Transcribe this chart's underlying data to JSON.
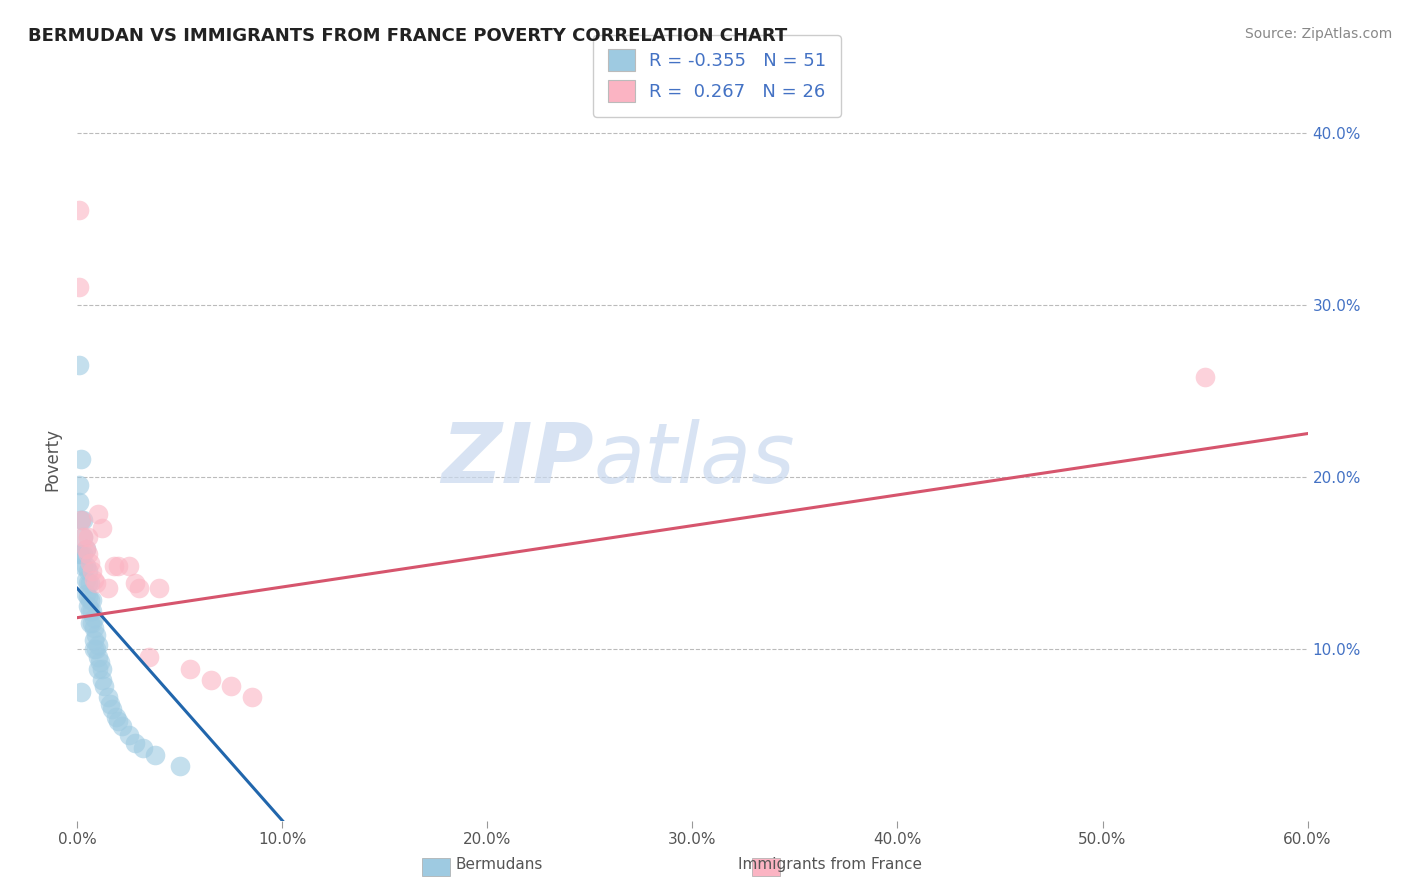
{
  "title": "BERMUDAN VS IMMIGRANTS FROM FRANCE POVERTY CORRELATION CHART",
  "source": "Source: ZipAtlas.com",
  "ylabel": "Poverty",
  "legend_label1": "Bermudans",
  "legend_label2": "Immigrants from France",
  "r1": -0.355,
  "n1": 51,
  "r2": 0.267,
  "n2": 26,
  "xlim": [
    0.0,
    0.6
  ],
  "ylim": [
    0.0,
    0.42
  ],
  "yticks_right": [
    0.1,
    0.2,
    0.3,
    0.4
  ],
  "color_blue": "#9ecae1",
  "color_pink": "#fbb4c3",
  "line_blue": "#2166ac",
  "line_pink": "#d6556d",
  "blue_line_x0": 0.0,
  "blue_line_y0": 0.135,
  "blue_line_x1": 0.1,
  "blue_line_y1": 0.0,
  "pink_line_x0": 0.0,
  "pink_line_y0": 0.118,
  "pink_line_x1": 0.6,
  "pink_line_y1": 0.225,
  "blue_x": [
    0.001,
    0.001,
    0.001,
    0.002,
    0.002,
    0.002,
    0.003,
    0.003,
    0.003,
    0.003,
    0.004,
    0.004,
    0.004,
    0.004,
    0.005,
    0.005,
    0.005,
    0.005,
    0.006,
    0.006,
    0.006,
    0.006,
    0.007,
    0.007,
    0.007,
    0.008,
    0.008,
    0.008,
    0.008,
    0.009,
    0.009,
    0.01,
    0.01,
    0.01,
    0.011,
    0.012,
    0.012,
    0.013,
    0.015,
    0.016,
    0.017,
    0.019,
    0.02,
    0.022,
    0.025,
    0.028,
    0.032,
    0.038,
    0.05,
    0.001,
    0.002
  ],
  "blue_y": [
    0.265,
    0.185,
    0.155,
    0.21,
    0.175,
    0.155,
    0.175,
    0.165,
    0.155,
    0.148,
    0.158,
    0.148,
    0.14,
    0.132,
    0.145,
    0.138,
    0.13,
    0.125,
    0.138,
    0.128,
    0.122,
    0.115,
    0.128,
    0.122,
    0.115,
    0.118,
    0.112,
    0.105,
    0.1,
    0.108,
    0.1,
    0.102,
    0.095,
    0.088,
    0.092,
    0.088,
    0.082,
    0.078,
    0.072,
    0.068,
    0.065,
    0.06,
    0.058,
    0.055,
    0.05,
    0.045,
    0.042,
    0.038,
    0.032,
    0.195,
    0.075
  ],
  "pink_x": [
    0.001,
    0.001,
    0.002,
    0.003,
    0.004,
    0.005,
    0.005,
    0.006,
    0.007,
    0.008,
    0.009,
    0.01,
    0.012,
    0.015,
    0.018,
    0.02,
    0.025,
    0.028,
    0.03,
    0.035,
    0.04,
    0.055,
    0.065,
    0.075,
    0.085,
    0.55
  ],
  "pink_y": [
    0.355,
    0.31,
    0.175,
    0.165,
    0.158,
    0.165,
    0.155,
    0.15,
    0.145,
    0.14,
    0.138,
    0.178,
    0.17,
    0.135,
    0.148,
    0.148,
    0.148,
    0.138,
    0.135,
    0.095,
    0.135,
    0.088,
    0.082,
    0.078,
    0.072,
    0.258
  ]
}
